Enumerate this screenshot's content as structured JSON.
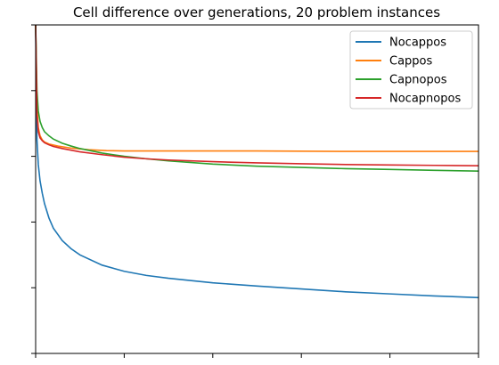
{
  "chart_data": {
    "type": "line",
    "title": "Cell difference over generations, 20 problem instances",
    "xlabel": "",
    "ylabel": "",
    "x_tick_labels": [],
    "y_tick_labels": [],
    "legend_position": "top-right",
    "grid": false,
    "series": [
      {
        "name": "Nocappos",
        "color": "#1f77b4",
        "x": [
          0,
          0.3,
          0.6,
          1,
          1.5,
          2,
          3,
          4,
          6,
          8,
          10,
          15,
          20,
          25,
          30,
          40,
          50,
          60,
          70,
          80,
          90,
          100
        ],
        "y": [
          1.0,
          0.72,
          0.66,
          0.62,
          0.59,
          0.565,
          0.53,
          0.505,
          0.475,
          0.455,
          0.44,
          0.415,
          0.4,
          0.39,
          0.383,
          0.372,
          0.364,
          0.357,
          0.35,
          0.345,
          0.34,
          0.336
        ]
      },
      {
        "name": "Cappos",
        "color": "#ff7f0e",
        "x": [
          0,
          0.3,
          0.6,
          1,
          1.5,
          2,
          3,
          5,
          8,
          12,
          16,
          20,
          30,
          50,
          70,
          100
        ],
        "y": [
          1.0,
          0.8,
          0.75,
          0.73,
          0.72,
          0.715,
          0.71,
          0.705,
          0.7,
          0.696,
          0.694,
          0.693,
          0.693,
          0.693,
          0.692,
          0.692
        ]
      },
      {
        "name": "Capnopos",
        "color": "#2ca02c",
        "x": [
          0,
          0.3,
          0.6,
          1,
          1.5,
          2,
          3,
          4,
          6,
          8,
          10,
          15,
          20,
          25,
          30,
          40,
          50,
          60,
          70,
          80,
          90,
          100
        ],
        "y": [
          1.0,
          0.84,
          0.79,
          0.765,
          0.75,
          0.74,
          0.73,
          0.722,
          0.712,
          0.705,
          0.699,
          0.688,
          0.68,
          0.674,
          0.669,
          0.661,
          0.656,
          0.653,
          0.65,
          0.648,
          0.646,
          0.644
        ]
      },
      {
        "name": "Nocapnopos",
        "color": "#d62728",
        "x": [
          0,
          0.3,
          0.6,
          1,
          1.5,
          2,
          3,
          4,
          6,
          8,
          10,
          15,
          20,
          25,
          30,
          40,
          50,
          60,
          70,
          80,
          90,
          100
        ],
        "y": [
          1.0,
          0.78,
          0.74,
          0.725,
          0.718,
          0.713,
          0.708,
          0.704,
          0.699,
          0.695,
          0.691,
          0.684,
          0.678,
          0.674,
          0.671,
          0.667,
          0.664,
          0.662,
          0.66,
          0.659,
          0.658,
          0.657
        ]
      }
    ],
    "xlim": [
      0,
      100
    ],
    "ylim": [
      0.2,
      1.0
    ]
  }
}
